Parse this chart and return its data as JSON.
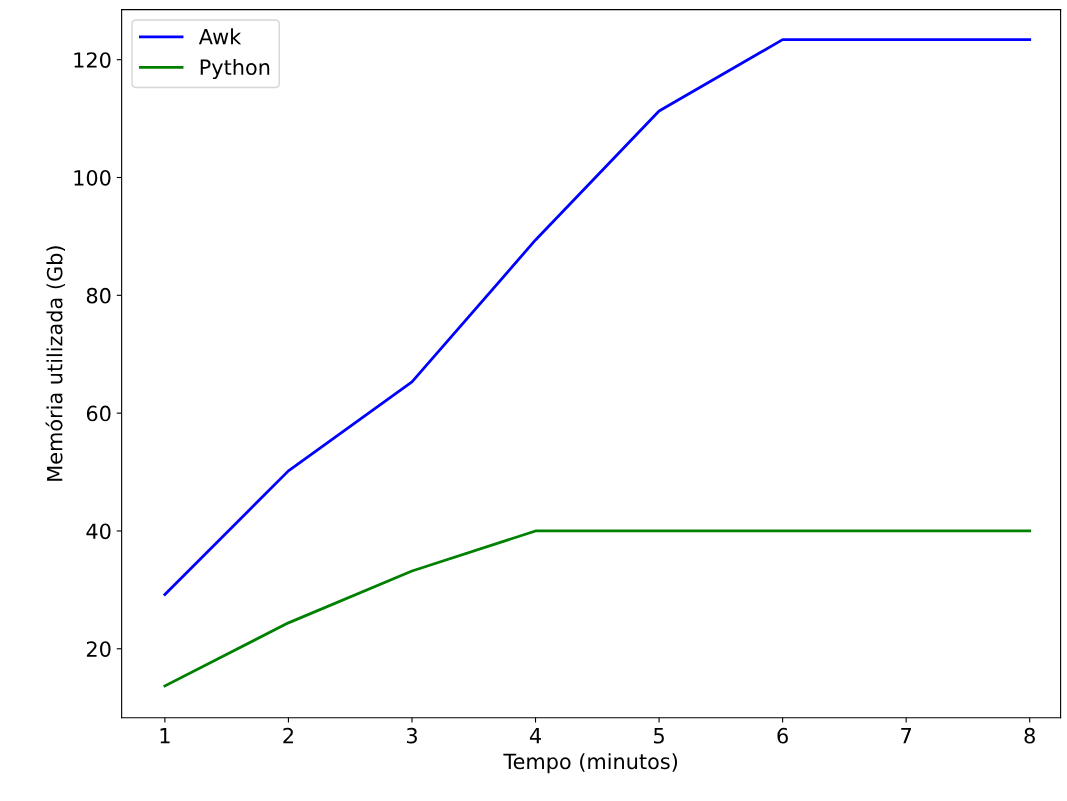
{
  "chart_data": {
    "type": "line",
    "xlabel": "Tempo (minutos)",
    "ylabel": "Memória utilizada (Gb)",
    "x": [
      1,
      2,
      3,
      4,
      5,
      6,
      7,
      8
    ],
    "series": [
      {
        "name": "Awk",
        "color": "#0000ff",
        "values": [
          29.2,
          50.2,
          65.3,
          89.4,
          111.3,
          123.4,
          123.4,
          123.4
        ]
      },
      {
        "name": "Python",
        "color": "#008000",
        "values": [
          13.7,
          24.4,
          33.2,
          40,
          40,
          40,
          40,
          40
        ]
      }
    ],
    "xlim": [
      0.65,
      8.25
    ],
    "xticks": [
      1,
      2,
      3,
      4,
      5,
      6,
      7,
      8
    ],
    "ylim": [
      8.3,
      128.5
    ],
    "yticks": [
      20,
      40,
      60,
      80,
      100,
      120
    ],
    "grid": false,
    "legend": "top left"
  }
}
